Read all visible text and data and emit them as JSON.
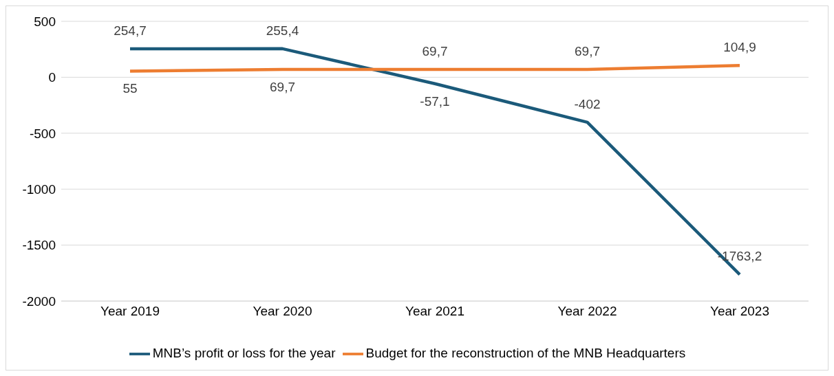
{
  "chart_data": {
    "type": "line",
    "categories": [
      "Year 2019",
      "Year 2020",
      "Year 2021",
      "Year 2022",
      "Year 2023"
    ],
    "series": [
      {
        "name": "MNB’s profit or loss for the year",
        "color": "#1b5a7a",
        "values": [
          254.7,
          255.4,
          -57.1,
          -402,
          -1763.2
        ],
        "value_labels": [
          "254,7",
          "255,4",
          "-57,1",
          "-402",
          "-1763,2"
        ]
      },
      {
        "name": "Budget for the reconstruction of the MNB Headquarters",
        "color": "#ed7d31",
        "values": [
          55,
          69.7,
          69.7,
          69.7,
          104.9
        ],
        "value_labels": [
          "55",
          "69,7",
          "69,7",
          "69,7",
          "104,9"
        ]
      }
    ],
    "ylim": [
      -2000,
      500
    ],
    "yticks": [
      -2000,
      -1500,
      -1000,
      -500,
      0,
      500
    ],
    "grid": "y",
    "legend": "bottom",
    "marker": "none",
    "line_style": "solid"
  }
}
